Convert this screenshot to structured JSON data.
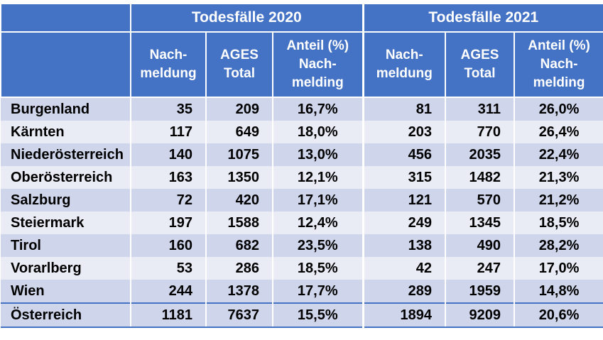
{
  "groups": [
    "Todesfälle 2020",
    "Todesfälle 2021"
  ],
  "columns": [
    "Nach-\nmeldung",
    "AGES\nTotal",
    "Anteil (%)\nNach-\nmelding",
    "Nach-\nmeldung",
    "AGES\nTotal",
    "Anteil (%)\nNach-\nmelding"
  ],
  "rows": [
    {
      "region": "Burgenland",
      "cells": [
        "35",
        "209",
        "16,7%",
        "81",
        "311",
        "26,0%"
      ]
    },
    {
      "region": "Kärnten",
      "cells": [
        "117",
        "649",
        "18,0%",
        "203",
        "770",
        "26,4%"
      ]
    },
    {
      "region": "Niederösterreich",
      "cells": [
        "140",
        "1075",
        "13,0%",
        "456",
        "2035",
        "22,4%"
      ]
    },
    {
      "region": "Oberösterreich",
      "cells": [
        "163",
        "1350",
        "12,1%",
        "315",
        "1482",
        "21,3%"
      ]
    },
    {
      "region": "Salzburg",
      "cells": [
        "72",
        "420",
        "17,1%",
        "121",
        "570",
        "21,2%"
      ]
    },
    {
      "region": "Steiermark",
      "cells": [
        "197",
        "1588",
        "12,4%",
        "249",
        "1345",
        "18,5%"
      ]
    },
    {
      "region": "Tirol",
      "cells": [
        "160",
        "682",
        "23,5%",
        "138",
        "490",
        "28,2%"
      ]
    },
    {
      "region": "Vorarlberg",
      "cells": [
        "53",
        "286",
        "18,5%",
        "42",
        "247",
        "17,0%"
      ]
    },
    {
      "region": "Wien",
      "cells": [
        "244",
        "1378",
        "17,7%",
        "289",
        "1959",
        "14,8%"
      ]
    }
  ],
  "total": {
    "region": "Österreich",
    "cells": [
      "1181",
      "7637",
      "15,5%",
      "1894",
      "9209",
      "20,6%"
    ]
  },
  "colors": {
    "header": "#4472c4",
    "row_dark": "#cfd5ea",
    "row_light": "#e9ebf5"
  }
}
